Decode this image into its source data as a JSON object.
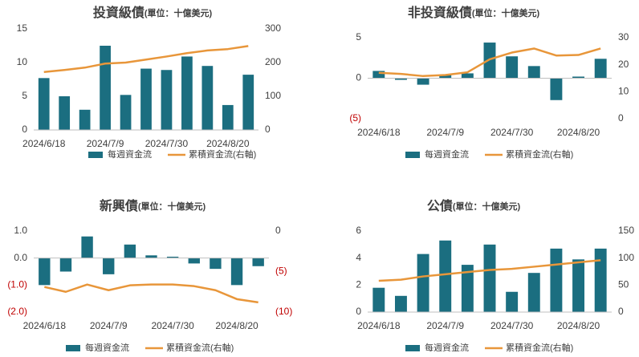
{
  "chart_data": [
    {
      "type": "bar",
      "title": "投資級債",
      "subtitle": "(單位：十億美元)",
      "categories": [
        "2024/6/18",
        null,
        null,
        "2024/7/9",
        null,
        null,
        "2024/7/30",
        null,
        null,
        "2024/8/20",
        null
      ],
      "series": [
        {
          "name": "每週資金流",
          "color": "#1b6e80",
          "values": [
            7.7,
            5.0,
            3.0,
            12.5,
            5.2,
            9.1,
            8.9,
            10.9,
            9.5,
            3.7,
            8.2
          ]
        },
        {
          "name": "累積資金流(右軸)",
          "color": "#e8963a",
          "type": "line",
          "axis": "y2",
          "values": [
            172,
            178,
            185,
            197,
            200,
            209,
            218,
            228,
            236,
            240,
            249
          ]
        }
      ],
      "ylim": [
        0,
        15
      ],
      "yticks": [
        0,
        5,
        10,
        15
      ],
      "y2lim": [
        0,
        300
      ],
      "y2ticks": [
        0,
        100,
        200,
        300
      ],
      "negative_color": "#c00000"
    },
    {
      "type": "bar",
      "title": "非投資級債",
      "subtitle": "(單位：十億美元)",
      "categories": [
        "2024/6/18",
        null,
        null,
        "2024/7/9",
        null,
        null,
        "2024/7/30",
        null,
        null,
        "2024/8/20",
        null
      ],
      "series": [
        {
          "name": "每週資金流",
          "color": "#1b6e80",
          "values": [
            0.9,
            -0.2,
            -0.8,
            0.4,
            0.6,
            4.4,
            2.7,
            1.5,
            -2.7,
            0.2,
            2.4
          ]
        },
        {
          "name": "累積資金流(右軸)",
          "color": "#e8963a",
          "type": "line",
          "axis": "y2",
          "values": [
            17,
            16.6,
            15.8,
            16.2,
            17.2,
            22,
            24.5,
            26,
            23.4,
            23.6,
            26
          ]
        }
      ],
      "ylim": [
        -5,
        5
      ],
      "yticks": [
        {
          "value": -5,
          "label": "(5)"
        },
        0,
        5
      ],
      "y2lim": [
        0,
        30
      ],
      "y2ticks": [
        0,
        10,
        20,
        30
      ],
      "negative_color": "#c00000"
    },
    {
      "type": "bar",
      "title": "新興債",
      "subtitle": "(單位：十億美元)",
      "categories": [
        "2024/6/18",
        null,
        null,
        "2024/7/9",
        null,
        null,
        "2024/7/30",
        null,
        null,
        "2024/8/20",
        null
      ],
      "series": [
        {
          "name": "每週資金流",
          "color": "#1b6e80",
          "values": [
            -1.0,
            -0.5,
            0.8,
            -0.6,
            0.5,
            0.1,
            0.05,
            -0.2,
            -0.4,
            -1.0,
            -0.3
          ]
        },
        {
          "name": "累積資金流(右軸)",
          "color": "#e8963a",
          "type": "line",
          "axis": "y2",
          "values": [
            -6.9,
            -7.5,
            -6.6,
            -7.3,
            -6.7,
            -6.6,
            -6.6,
            -6.8,
            -7.3,
            -8.4,
            -8.8
          ]
        }
      ],
      "ylim": [
        -2,
        1
      ],
      "yticks": [
        {
          "value": 1,
          "label": "1.0"
        },
        {
          "value": 0,
          "label": "0.0"
        },
        {
          "value": -1,
          "label": "(1.0)"
        },
        {
          "value": -2,
          "label": "(2.0)"
        }
      ],
      "y2lim": [
        -10,
        0
      ],
      "y2ticks": [
        0,
        {
          "value": -5,
          "label": "(5)"
        },
        {
          "value": -10,
          "label": "(10)"
        }
      ],
      "negative_color": "#c00000"
    },
    {
      "type": "bar",
      "title": "公債",
      "subtitle": "(單位：十億美元)",
      "categories": [
        "2024/6/18",
        null,
        null,
        "2024/7/9",
        null,
        null,
        "2024/7/30",
        null,
        null,
        "2024/8/20",
        null
      ],
      "series": [
        {
          "name": "每週資金流",
          "color": "#1b6e80",
          "values": [
            1.8,
            1.2,
            4.3,
            5.3,
            3.5,
            5.0,
            1.5,
            2.9,
            4.7,
            3.9,
            4.7
          ]
        },
        {
          "name": "累積資金流(右軸)",
          "color": "#e8963a",
          "type": "line",
          "axis": "y2",
          "values": [
            58,
            60,
            66,
            70,
            74,
            78,
            80,
            84,
            88,
            92,
            96
          ]
        }
      ],
      "ylim": [
        0,
        6
      ],
      "yticks": [
        0,
        2,
        4,
        6
      ],
      "y2lim": [
        0,
        150
      ],
      "y2ticks": [
        0,
        50,
        100,
        150
      ],
      "negative_color": "#c00000"
    }
  ]
}
